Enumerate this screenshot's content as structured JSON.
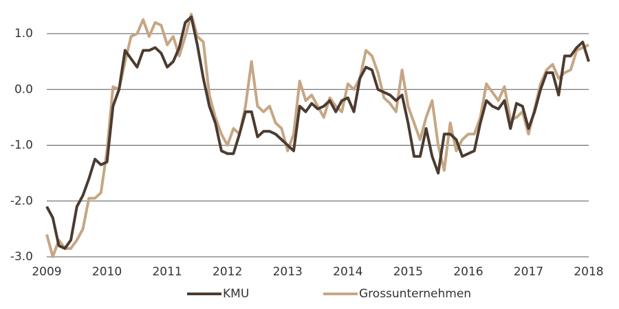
{
  "chart_data": {
    "type": "line",
    "x": [
      2009.0,
      2009.1,
      2009.2,
      2009.3,
      2009.4,
      2009.5,
      2009.6,
      2009.7,
      2009.8,
      2009.9,
      2010.0,
      2010.1,
      2010.2,
      2010.3,
      2010.4,
      2010.5,
      2010.6,
      2010.7,
      2010.8,
      2010.9,
      2011.0,
      2011.1,
      2011.2,
      2011.3,
      2011.4,
      2011.5,
      2011.6,
      2011.7,
      2011.8,
      2011.9,
      2012.0,
      2012.1,
      2012.2,
      2012.3,
      2012.4,
      2012.5,
      2012.6,
      2012.7,
      2012.8,
      2012.9,
      2013.0,
      2013.1,
      2013.2,
      2013.3,
      2013.4,
      2013.5,
      2013.6,
      2013.7,
      2013.8,
      2013.9,
      2014.0,
      2014.1,
      2014.2,
      2014.3,
      2014.4,
      2014.5,
      2014.6,
      2014.7,
      2014.8,
      2014.9,
      2015.0,
      2015.1,
      2015.2,
      2015.3,
      2015.4,
      2015.5,
      2015.6,
      2015.7,
      2015.8,
      2015.9,
      2016.0,
      2016.1,
      2016.2,
      2016.3,
      2016.4,
      2016.5,
      2016.6,
      2016.7,
      2016.8,
      2016.9,
      2017.0,
      2017.1,
      2017.2,
      2017.3,
      2017.4,
      2017.5,
      2017.6,
      2017.7,
      2017.8,
      2017.9,
      2018.0
    ],
    "series": [
      {
        "name": "KMU",
        "color": "#4b3b30",
        "values": [
          -2.1,
          -2.3,
          -2.8,
          -2.85,
          -2.7,
          -2.1,
          -1.9,
          -1.6,
          -1.25,
          -1.35,
          -1.3,
          -0.3,
          0.0,
          0.7,
          0.55,
          0.4,
          0.7,
          0.7,
          0.75,
          0.65,
          0.4,
          0.5,
          0.75,
          1.2,
          1.3,
          0.8,
          0.2,
          -0.3,
          -0.6,
          -1.1,
          -1.15,
          -1.15,
          -0.8,
          -0.4,
          -0.4,
          -0.85,
          -0.75,
          -0.75,
          -0.8,
          -0.9,
          -1.0,
          -1.1,
          -0.3,
          -0.4,
          -0.25,
          -0.35,
          -0.3,
          -0.2,
          -0.4,
          -0.2,
          -0.15,
          -0.4,
          0.2,
          0.4,
          0.35,
          0.0,
          -0.05,
          -0.1,
          -0.2,
          -0.1,
          -0.6,
          -1.2,
          -1.2,
          -0.7,
          -1.2,
          -1.5,
          -0.8,
          -0.8,
          -0.9,
          -1.2,
          -1.15,
          -1.1,
          -0.6,
          -0.2,
          -0.3,
          -0.35,
          -0.2,
          -0.7,
          -0.25,
          -0.3,
          -0.7,
          -0.4,
          0.0,
          0.3,
          0.3,
          -0.1,
          0.6,
          0.6,
          0.75,
          0.85,
          0.5
        ]
      },
      {
        "name": "Grossunternehmen",
        "color": "#c6a684",
        "values": [
          -2.6,
          -3.0,
          -2.7,
          -2.85,
          -2.85,
          -2.7,
          -2.5,
          -1.95,
          -1.95,
          -1.85,
          -1.1,
          0.05,
          0.0,
          0.5,
          0.95,
          1.0,
          1.25,
          0.95,
          1.2,
          1.15,
          0.8,
          0.95,
          0.6,
          0.95,
          1.35,
          0.95,
          0.85,
          -0.1,
          -0.5,
          -0.8,
          -1.0,
          -0.7,
          -0.8,
          -0.3,
          0.5,
          -0.3,
          -0.4,
          -0.3,
          -0.6,
          -0.7,
          -1.1,
          -0.8,
          0.15,
          -0.2,
          -0.1,
          -0.3,
          -0.5,
          -0.15,
          -0.3,
          -0.4,
          0.1,
          0.0,
          0.2,
          0.7,
          0.6,
          0.3,
          -0.15,
          -0.25,
          -0.4,
          0.35,
          -0.3,
          -0.6,
          -0.9,
          -0.5,
          -0.2,
          -1.0,
          -1.45,
          -0.6,
          -1.1,
          -0.9,
          -0.8,
          -0.8,
          -0.5,
          0.1,
          -0.05,
          -0.2,
          0.05,
          -0.55,
          -0.5,
          -0.4,
          -0.8,
          -0.35,
          0.1,
          0.35,
          0.45,
          0.2,
          0.3,
          0.35,
          0.7,
          0.75,
          0.8
        ]
      }
    ],
    "xlim": [
      2009,
      2018
    ],
    "xticks": [
      2009,
      2010,
      2011,
      2012,
      2013,
      2014,
      2015,
      2016,
      2017,
      2018
    ],
    "ylim": [
      -3,
      1.5
    ],
    "yticks": [
      {
        "value": 1,
        "label": "1.0"
      },
      {
        "value": 0,
        "label": "0.0"
      },
      {
        "value": -1,
        "label": "-1.0"
      },
      {
        "value": -2,
        "label": "-2.0"
      },
      {
        "value": -3,
        "label": "-3.0"
      }
    ],
    "grid": true,
    "legend": "bottom"
  }
}
